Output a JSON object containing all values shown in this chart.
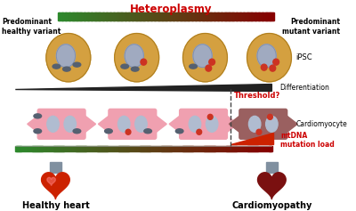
{
  "title": "Heteroplasmy",
  "title_color": "#cc0000",
  "title_fontsize": 8.5,
  "bg_color": "#ffffff",
  "left_label_line1": "Predominant",
  "left_label_line2": "healthy variant",
  "right_label_line1": "Predominant",
  "right_label_line2": "mutant variant",
  "gradient_green": "#2d8a2d",
  "gradient_red": "#880000",
  "ipsc_label": "iPSC",
  "differentiation_label": "Differentiation",
  "threshold_label": "Threshold?",
  "threshold_color": "#cc0000",
  "cardiomyocyte_label": "Cardiomyocyte",
  "mtdna_label_line1": "mtDNA",
  "mtdna_label_line2": "mutation load",
  "mtdna_color": "#cc0000",
  "healthy_heart_label": "Healthy heart",
  "cardiomyopathy_label": "Cardiomyopathy",
  "wedge_color": "#222222",
  "red_triangle_color": "#cc2200",
  "dashed_line_color": "#444444",
  "cell_yellow": "#d4a040",
  "cell_nucleus_color": "#a0aac0",
  "mito_healthy_color": "#556070",
  "mito_red_color": "#cc3322",
  "cm_healthy_color": "#f0a0b0",
  "cm_sick_color": "#9a6060",
  "cm_nucleus_color": "#b0bcd0",
  "bottom_bar_line_color": "#888888",
  "heart_healthy_color": "#cc2200",
  "heart_sick_color": "#7a1010",
  "heart_aorta_color": "#8090a0",
  "label_fontsize": 5.5,
  "bold_label_fontsize": 7.0
}
